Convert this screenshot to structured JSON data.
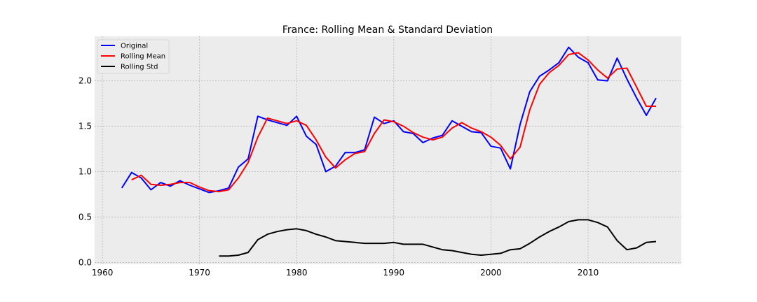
{
  "chart_data": {
    "type": "line",
    "title": "France: Rolling Mean & Standard Deviation",
    "xlabel": "",
    "ylabel": "",
    "xlim": [
      1959.2,
      2019.6
    ],
    "ylim": [
      -0.02,
      2.49
    ],
    "x_ticks": [
      1960,
      1970,
      1980,
      1990,
      2000,
      2010
    ],
    "y_ticks": [
      0.0,
      0.5,
      1.0,
      1.5,
      2.0
    ],
    "y_tick_labels": [
      "0.0",
      "0.5",
      "1.0",
      "1.5",
      "2.0"
    ],
    "grid": true,
    "legend_position": "top-left",
    "series": [
      {
        "name": "Original",
        "color": "#0000ff",
        "x": [
          1962,
          1963,
          1964,
          1965,
          1966,
          1967,
          1968,
          1969,
          1970,
          1971,
          1972,
          1973,
          1974,
          1975,
          1976,
          1977,
          1978,
          1979,
          1980,
          1981,
          1982,
          1983,
          1984,
          1985,
          1986,
          1987,
          1988,
          1989,
          1990,
          1991,
          1992,
          1993,
          1994,
          1995,
          1996,
          1997,
          1998,
          1999,
          2000,
          2001,
          2002,
          2003,
          2004,
          2005,
          2006,
          2007,
          2008,
          2009,
          2010,
          2011,
          2012,
          2013,
          2014,
          2015,
          2016,
          2017
        ],
        "values": [
          0.82,
          0.99,
          0.93,
          0.8,
          0.88,
          0.84,
          0.9,
          0.85,
          0.81,
          0.77,
          0.79,
          0.82,
          1.05,
          1.14,
          1.61,
          1.57,
          1.54,
          1.51,
          1.61,
          1.39,
          1.3,
          1.0,
          1.06,
          1.21,
          1.21,
          1.24,
          1.6,
          1.53,
          1.56,
          1.44,
          1.42,
          1.32,
          1.37,
          1.4,
          1.56,
          1.5,
          1.44,
          1.43,
          1.28,
          1.26,
          1.03,
          1.52,
          1.88,
          2.05,
          2.12,
          2.2,
          2.37,
          2.26,
          2.2,
          2.01,
          2.0,
          2.25,
          2.02,
          1.81,
          1.62,
          1.81
        ]
      },
      {
        "name": "Rolling Mean",
        "color": "#ff0000",
        "x": [
          1963,
          1964,
          1965,
          1966,
          1967,
          1968,
          1969,
          1970,
          1971,
          1972,
          1973,
          1974,
          1975,
          1976,
          1977,
          1978,
          1979,
          1980,
          1981,
          1982,
          1983,
          1984,
          1985,
          1986,
          1987,
          1988,
          1989,
          1990,
          1991,
          1992,
          1993,
          1994,
          1995,
          1996,
          1997,
          1998,
          1999,
          2000,
          2001,
          2002,
          2003,
          2004,
          2005,
          2006,
          2007,
          2008,
          2009,
          2010,
          2011,
          2012,
          2013,
          2014,
          2015,
          2016,
          2017
        ],
        "values": [
          0.91,
          0.96,
          0.86,
          0.85,
          0.86,
          0.88,
          0.88,
          0.83,
          0.79,
          0.78,
          0.8,
          0.93,
          1.1,
          1.38,
          1.59,
          1.56,
          1.53,
          1.56,
          1.51,
          1.35,
          1.16,
          1.04,
          1.13,
          1.2,
          1.22,
          1.42,
          1.57,
          1.55,
          1.5,
          1.43,
          1.38,
          1.35,
          1.38,
          1.48,
          1.54,
          1.48,
          1.44,
          1.38,
          1.29,
          1.14,
          1.27,
          1.68,
          1.96,
          2.09,
          2.17,
          2.29,
          2.31,
          2.23,
          2.12,
          2.03,
          2.13,
          2.14,
          1.93,
          1.72,
          1.72
        ]
      },
      {
        "name": "Rolling Std",
        "color": "#000000",
        "x": [
          1972,
          1973,
          1974,
          1975,
          1976,
          1977,
          1978,
          1979,
          1980,
          1981,
          1982,
          1983,
          1984,
          1985,
          1986,
          1987,
          1988,
          1989,
          1990,
          1991,
          1992,
          1993,
          1994,
          1995,
          1996,
          1997,
          1998,
          1999,
          2000,
          2001,
          2002,
          2003,
          2004,
          2005,
          2006,
          2007,
          2008,
          2009,
          2010,
          2011,
          2012,
          2013,
          2014,
          2015,
          2016,
          2017
        ],
        "values": [
          0.07,
          0.07,
          0.08,
          0.11,
          0.25,
          0.31,
          0.34,
          0.36,
          0.37,
          0.35,
          0.31,
          0.28,
          0.24,
          0.23,
          0.22,
          0.21,
          0.21,
          0.21,
          0.22,
          0.2,
          0.2,
          0.2,
          0.17,
          0.14,
          0.13,
          0.11,
          0.09,
          0.08,
          0.09,
          0.1,
          0.14,
          0.15,
          0.21,
          0.28,
          0.34,
          0.39,
          0.45,
          0.47,
          0.47,
          0.44,
          0.39,
          0.24,
          0.14,
          0.16,
          0.22,
          0.23
        ]
      }
    ]
  }
}
